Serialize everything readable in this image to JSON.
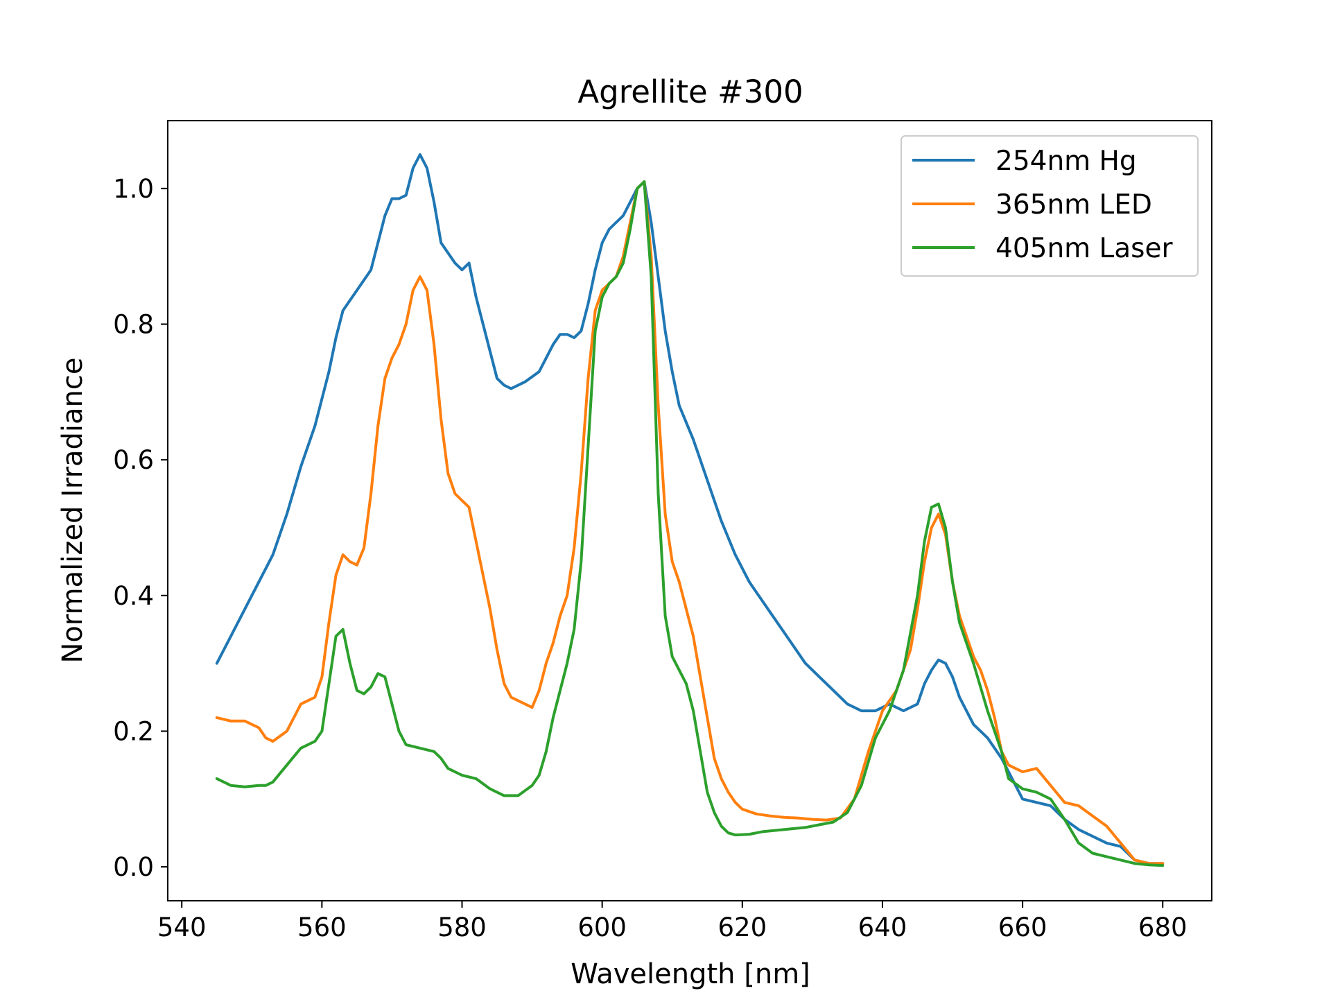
{
  "chart_data": {
    "type": "line",
    "title": "Agrellite #300",
    "xlabel": "Wavelength [nm]",
    "ylabel": "Normalized Irradiance",
    "xlim": [
      538,
      687
    ],
    "ylim": [
      -0.05,
      1.1
    ],
    "xticks": [
      540,
      560,
      580,
      600,
      620,
      640,
      660,
      680
    ],
    "yticks": [
      0.0,
      0.2,
      0.4,
      0.6,
      0.8,
      1.0
    ],
    "xtick_labels": [
      "540",
      "560",
      "580",
      "600",
      "620",
      "640",
      "660",
      "680"
    ],
    "ytick_labels": [
      "0.0",
      "0.2",
      "0.4",
      "0.6",
      "0.8",
      "1.0"
    ],
    "grid": false,
    "legend_position": "top-right",
    "series": [
      {
        "name": "254nm Hg",
        "color": "#1f77b4",
        "points": [
          [
            545,
            0.3
          ],
          [
            547,
            0.34
          ],
          [
            549,
            0.38
          ],
          [
            551,
            0.42
          ],
          [
            553,
            0.46
          ],
          [
            555,
            0.52
          ],
          [
            557,
            0.59
          ],
          [
            559,
            0.65
          ],
          [
            561,
            0.73
          ],
          [
            562,
            0.78
          ],
          [
            563,
            0.82
          ],
          [
            565,
            0.85
          ],
          [
            567,
            0.88
          ],
          [
            568,
            0.92
          ],
          [
            569,
            0.96
          ],
          [
            570,
            0.985
          ],
          [
            571,
            0.985
          ],
          [
            572,
            0.99
          ],
          [
            573,
            1.03
          ],
          [
            574,
            1.05
          ],
          [
            575,
            1.03
          ],
          [
            576,
            0.98
          ],
          [
            577,
            0.92
          ],
          [
            579,
            0.89
          ],
          [
            580,
            0.88
          ],
          [
            581,
            0.89
          ],
          [
            582,
            0.84
          ],
          [
            584,
            0.76
          ],
          [
            585,
            0.72
          ],
          [
            586,
            0.71
          ],
          [
            587,
            0.705
          ],
          [
            589,
            0.715
          ],
          [
            591,
            0.73
          ],
          [
            592,
            0.75
          ],
          [
            593,
            0.77
          ],
          [
            594,
            0.785
          ],
          [
            595,
            0.785
          ],
          [
            596,
            0.78
          ],
          [
            597,
            0.79
          ],
          [
            598,
            0.83
          ],
          [
            599,
            0.88
          ],
          [
            600,
            0.92
          ],
          [
            601,
            0.94
          ],
          [
            602,
            0.95
          ],
          [
            603,
            0.96
          ],
          [
            604,
            0.98
          ],
          [
            605,
            1.0
          ],
          [
            606,
            1.01
          ],
          [
            607,
            0.95
          ],
          [
            608,
            0.87
          ],
          [
            609,
            0.79
          ],
          [
            610,
            0.73
          ],
          [
            611,
            0.68
          ],
          [
            613,
            0.63
          ],
          [
            615,
            0.57
          ],
          [
            617,
            0.51
          ],
          [
            619,
            0.46
          ],
          [
            621,
            0.42
          ],
          [
            623,
            0.39
          ],
          [
            625,
            0.36
          ],
          [
            627,
            0.33
          ],
          [
            629,
            0.3
          ],
          [
            631,
            0.28
          ],
          [
            633,
            0.26
          ],
          [
            635,
            0.24
          ],
          [
            637,
            0.23
          ],
          [
            639,
            0.23
          ],
          [
            641,
            0.24
          ],
          [
            643,
            0.23
          ],
          [
            645,
            0.24
          ],
          [
            646,
            0.27
          ],
          [
            647,
            0.29
          ],
          [
            648,
            0.305
          ],
          [
            649,
            0.3
          ],
          [
            650,
            0.28
          ],
          [
            651,
            0.25
          ],
          [
            653,
            0.21
          ],
          [
            655,
            0.19
          ],
          [
            657,
            0.16
          ],
          [
            659,
            0.12
          ],
          [
            660,
            0.1
          ],
          [
            662,
            0.095
          ],
          [
            664,
            0.09
          ],
          [
            666,
            0.07
          ],
          [
            668,
            0.055
          ],
          [
            670,
            0.045
          ],
          [
            672,
            0.035
          ],
          [
            674,
            0.03
          ],
          [
            676,
            0.01
          ],
          [
            678,
            0.005
          ],
          [
            680,
            0.005
          ]
        ]
      },
      {
        "name": "365nm LED",
        "color": "#ff7f0e",
        "points": [
          [
            545,
            0.22
          ],
          [
            547,
            0.215
          ],
          [
            549,
            0.215
          ],
          [
            551,
            0.205
          ],
          [
            552,
            0.19
          ],
          [
            553,
            0.185
          ],
          [
            555,
            0.2
          ],
          [
            556,
            0.22
          ],
          [
            557,
            0.24
          ],
          [
            558,
            0.245
          ],
          [
            559,
            0.25
          ],
          [
            560,
            0.28
          ],
          [
            561,
            0.36
          ],
          [
            562,
            0.43
          ],
          [
            563,
            0.46
          ],
          [
            564,
            0.45
          ],
          [
            565,
            0.445
          ],
          [
            566,
            0.47
          ],
          [
            567,
            0.55
          ],
          [
            568,
            0.65
          ],
          [
            569,
            0.72
          ],
          [
            570,
            0.75
          ],
          [
            571,
            0.77
          ],
          [
            572,
            0.8
          ],
          [
            573,
            0.85
          ],
          [
            574,
            0.87
          ],
          [
            575,
            0.85
          ],
          [
            576,
            0.77
          ],
          [
            577,
            0.66
          ],
          [
            578,
            0.58
          ],
          [
            579,
            0.55
          ],
          [
            580,
            0.54
          ],
          [
            581,
            0.53
          ],
          [
            582,
            0.48
          ],
          [
            583,
            0.43
          ],
          [
            584,
            0.38
          ],
          [
            585,
            0.32
          ],
          [
            586,
            0.27
          ],
          [
            587,
            0.25
          ],
          [
            588,
            0.245
          ],
          [
            589,
            0.24
          ],
          [
            590,
            0.235
          ],
          [
            591,
            0.26
          ],
          [
            592,
            0.3
          ],
          [
            593,
            0.33
          ],
          [
            594,
            0.37
          ],
          [
            595,
            0.4
          ],
          [
            596,
            0.47
          ],
          [
            597,
            0.58
          ],
          [
            598,
            0.72
          ],
          [
            599,
            0.82
          ],
          [
            600,
            0.85
          ],
          [
            601,
            0.86
          ],
          [
            602,
            0.87
          ],
          [
            603,
            0.9
          ],
          [
            604,
            0.95
          ],
          [
            605,
            1.0
          ],
          [
            606,
            1.01
          ],
          [
            607,
            0.9
          ],
          [
            608,
            0.68
          ],
          [
            609,
            0.52
          ],
          [
            610,
            0.45
          ],
          [
            611,
            0.42
          ],
          [
            612,
            0.38
          ],
          [
            613,
            0.34
          ],
          [
            614,
            0.28
          ],
          [
            615,
            0.22
          ],
          [
            616,
            0.16
          ],
          [
            617,
            0.13
          ],
          [
            618,
            0.11
          ],
          [
            619,
            0.095
          ],
          [
            620,
            0.085
          ],
          [
            622,
            0.078
          ],
          [
            624,
            0.075
          ],
          [
            626,
            0.073
          ],
          [
            628,
            0.072
          ],
          [
            630,
            0.07
          ],
          [
            632,
            0.069
          ],
          [
            634,
            0.072
          ],
          [
            636,
            0.1
          ],
          [
            638,
            0.17
          ],
          [
            640,
            0.23
          ],
          [
            642,
            0.26
          ],
          [
            644,
            0.32
          ],
          [
            645,
            0.38
          ],
          [
            646,
            0.45
          ],
          [
            647,
            0.5
          ],
          [
            648,
            0.52
          ],
          [
            649,
            0.49
          ],
          [
            650,
            0.42
          ],
          [
            651,
            0.37
          ],
          [
            652,
            0.34
          ],
          [
            653,
            0.31
          ],
          [
            654,
            0.29
          ],
          [
            655,
            0.26
          ],
          [
            656,
            0.22
          ],
          [
            657,
            0.17
          ],
          [
            658,
            0.15
          ],
          [
            660,
            0.14
          ],
          [
            662,
            0.145
          ],
          [
            664,
            0.12
          ],
          [
            666,
            0.095
          ],
          [
            668,
            0.09
          ],
          [
            670,
            0.075
          ],
          [
            672,
            0.06
          ],
          [
            674,
            0.035
          ],
          [
            676,
            0.01
          ],
          [
            678,
            0.005
          ],
          [
            680,
            0.005
          ]
        ]
      },
      {
        "name": "405nm Laser",
        "color": "#2ca02c",
        "points": [
          [
            545,
            0.13
          ],
          [
            547,
            0.12
          ],
          [
            549,
            0.118
          ],
          [
            551,
            0.12
          ],
          [
            552,
            0.12
          ],
          [
            553,
            0.125
          ],
          [
            555,
            0.15
          ],
          [
            557,
            0.175
          ],
          [
            559,
            0.185
          ],
          [
            560,
            0.2
          ],
          [
            561,
            0.27
          ],
          [
            562,
            0.34
          ],
          [
            563,
            0.35
          ],
          [
            564,
            0.3
          ],
          [
            565,
            0.26
          ],
          [
            566,
            0.255
          ],
          [
            567,
            0.265
          ],
          [
            568,
            0.285
          ],
          [
            569,
            0.28
          ],
          [
            570,
            0.24
          ],
          [
            571,
            0.2
          ],
          [
            572,
            0.18
          ],
          [
            574,
            0.175
          ],
          [
            576,
            0.17
          ],
          [
            577,
            0.16
          ],
          [
            578,
            0.145
          ],
          [
            580,
            0.135
          ],
          [
            582,
            0.13
          ],
          [
            584,
            0.115
          ],
          [
            586,
            0.105
          ],
          [
            588,
            0.105
          ],
          [
            590,
            0.12
          ],
          [
            591,
            0.135
          ],
          [
            592,
            0.17
          ],
          [
            593,
            0.22
          ],
          [
            594,
            0.26
          ],
          [
            595,
            0.3
          ],
          [
            596,
            0.35
          ],
          [
            597,
            0.45
          ],
          [
            598,
            0.62
          ],
          [
            599,
            0.79
          ],
          [
            600,
            0.84
          ],
          [
            601,
            0.86
          ],
          [
            602,
            0.87
          ],
          [
            603,
            0.89
          ],
          [
            604,
            0.94
          ],
          [
            605,
            1.0
          ],
          [
            606,
            1.01
          ],
          [
            607,
            0.87
          ],
          [
            608,
            0.55
          ],
          [
            609,
            0.37
          ],
          [
            610,
            0.31
          ],
          [
            611,
            0.29
          ],
          [
            612,
            0.27
          ],
          [
            613,
            0.23
          ],
          [
            614,
            0.17
          ],
          [
            615,
            0.11
          ],
          [
            616,
            0.08
          ],
          [
            617,
            0.06
          ],
          [
            618,
            0.05
          ],
          [
            619,
            0.047
          ],
          [
            621,
            0.048
          ],
          [
            623,
            0.052
          ],
          [
            625,
            0.054
          ],
          [
            627,
            0.056
          ],
          [
            629,
            0.058
          ],
          [
            631,
            0.062
          ],
          [
            633,
            0.066
          ],
          [
            635,
            0.08
          ],
          [
            637,
            0.12
          ],
          [
            639,
            0.19
          ],
          [
            641,
            0.23
          ],
          [
            643,
            0.29
          ],
          [
            645,
            0.4
          ],
          [
            646,
            0.48
          ],
          [
            647,
            0.53
          ],
          [
            648,
            0.535
          ],
          [
            649,
            0.5
          ],
          [
            650,
            0.42
          ],
          [
            651,
            0.36
          ],
          [
            653,
            0.3
          ],
          [
            655,
            0.23
          ],
          [
            657,
            0.17
          ],
          [
            658,
            0.13
          ],
          [
            660,
            0.115
          ],
          [
            662,
            0.11
          ],
          [
            664,
            0.1
          ],
          [
            666,
            0.07
          ],
          [
            668,
            0.035
          ],
          [
            670,
            0.02
          ],
          [
            672,
            0.015
          ],
          [
            674,
            0.01
          ],
          [
            676,
            0.005
          ],
          [
            678,
            0.003
          ],
          [
            680,
            0.002
          ]
        ]
      }
    ]
  }
}
